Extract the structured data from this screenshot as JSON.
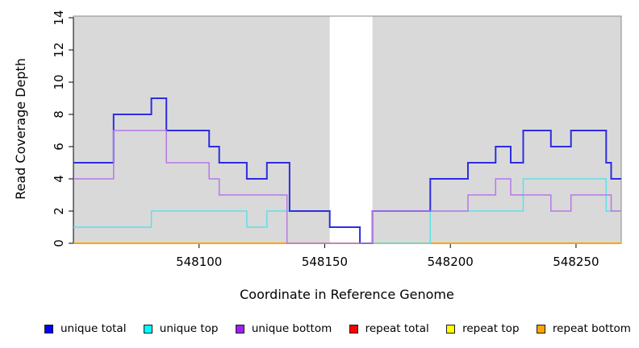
{
  "chart_data": {
    "type": "line",
    "subtype": "step",
    "title": "",
    "xlabel": "Coordinate in Reference Genome",
    "ylabel": "Read Coverage Depth",
    "xlim": [
      548050,
      548268
    ],
    "ylim": [
      0,
      14
    ],
    "x_ticks": [
      548100,
      548150,
      548200,
      548250
    ],
    "y_ticks": [
      0,
      2,
      4,
      6,
      8,
      10,
      12,
      14
    ],
    "grid": false,
    "plot_background": "#d9d9d9",
    "box_color": "#8a8a8a",
    "axis_color": "#000000",
    "masked_region": {
      "from": 548152,
      "to": 548169,
      "color": "#ffffff"
    },
    "legend_position": "bottom",
    "series": [
      {
        "name": "repeat total",
        "color": "#ff0000",
        "line_width": 1.2,
        "points": [
          [
            548050,
            0
          ],
          [
            548268,
            0
          ]
        ]
      },
      {
        "name": "repeat top",
        "color": "#ffff00",
        "line_width": 1.2,
        "points": [
          [
            548050,
            0
          ],
          [
            548268,
            0
          ]
        ]
      },
      {
        "name": "repeat bottom",
        "color": "#ffa500",
        "line_width": 2,
        "points": [
          [
            548050,
            0
          ],
          [
            548268,
            0
          ]
        ]
      },
      {
        "name": "unique top",
        "color": "#5ee1e8",
        "line_width": 1.5,
        "points": [
          [
            548050,
            1
          ],
          [
            548081,
            2
          ],
          [
            548119,
            1
          ],
          [
            548127,
            2
          ],
          [
            548152,
            1
          ],
          [
            548164,
            0
          ],
          [
            548192,
            2
          ],
          [
            548229,
            4
          ],
          [
            548262,
            2
          ],
          [
            548268,
            2
          ]
        ]
      },
      {
        "name": "unique total",
        "color": "#2d2de0",
        "line_width": 2,
        "points": [
          [
            548050,
            5
          ],
          [
            548066,
            8
          ],
          [
            548081,
            9
          ],
          [
            548087,
            7
          ],
          [
            548104,
            6
          ],
          [
            548108,
            5
          ],
          [
            548119,
            4
          ],
          [
            548127,
            5
          ],
          [
            548136,
            2
          ],
          [
            548152,
            1
          ],
          [
            548164,
            0
          ],
          [
            548169,
            2
          ],
          [
            548192,
            4
          ],
          [
            548207,
            5
          ],
          [
            548218,
            6
          ],
          [
            548224,
            5
          ],
          [
            548229,
            7
          ],
          [
            548240,
            6
          ],
          [
            548248,
            7
          ],
          [
            548262,
            5
          ],
          [
            548264,
            4
          ],
          [
            548268,
            4
          ]
        ]
      },
      {
        "name": "unique bottom",
        "color": "#b678e8",
        "line_width": 1.5,
        "points": [
          [
            548050,
            4
          ],
          [
            548066,
            7
          ],
          [
            548087,
            5
          ],
          [
            548104,
            4
          ],
          [
            548108,
            3
          ],
          [
            548135,
            0
          ],
          [
            548169,
            2
          ],
          [
            548207,
            3
          ],
          [
            548218,
            4
          ],
          [
            548224,
            3
          ],
          [
            548240,
            2
          ],
          [
            548248,
            3
          ],
          [
            548264,
            2
          ],
          [
            548268,
            2
          ]
        ]
      }
    ],
    "legend": [
      {
        "label": "unique total",
        "color": "#0000ff"
      },
      {
        "label": "unique top",
        "color": "#00ffff"
      },
      {
        "label": "unique bottom",
        "color": "#a020f0"
      },
      {
        "label": "repeat total",
        "color": "#ff0000"
      },
      {
        "label": "repeat top",
        "color": "#ffff00"
      },
      {
        "label": "repeat bottom",
        "color": "#ffa500"
      }
    ]
  }
}
